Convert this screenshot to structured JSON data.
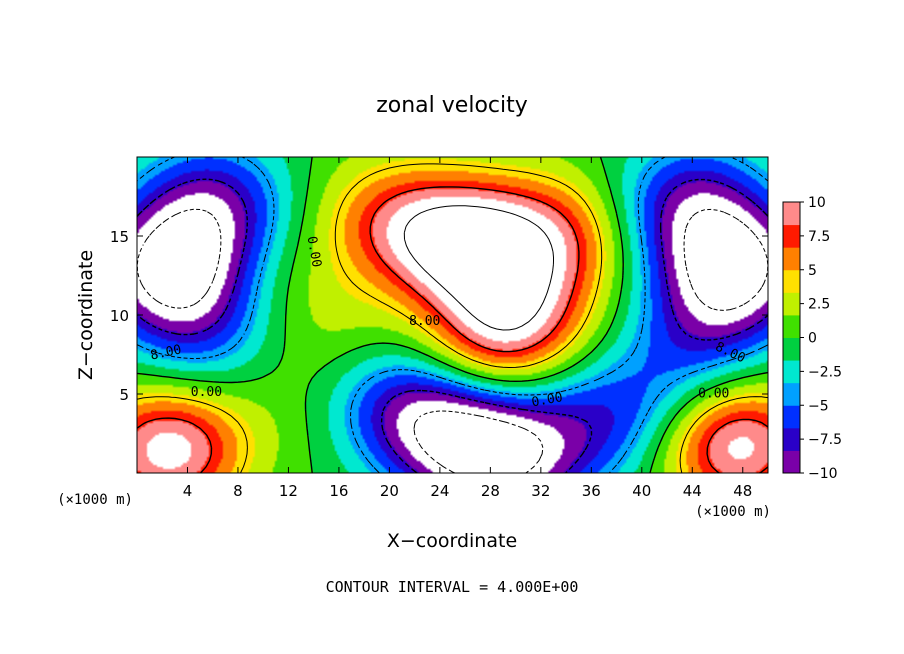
{
  "chart_data": {
    "type": "heatmap",
    "title": "zonal velocity",
    "xlabel": "X−coordinate",
    "ylabel": "Z−coordinate",
    "x_unit_left": "(×1000 m)",
    "x_unit_right": "(×1000 m)",
    "footer": "CONTOUR INTERVAL = 4.000E+00",
    "xlim": [
      0,
      50
    ],
    "ylim": [
      0,
      20
    ],
    "x_ticks": [
      "4",
      "8",
      "12",
      "16",
      "20",
      "24",
      "28",
      "32",
      "36",
      "40",
      "44",
      "48"
    ],
    "x_tick_values": [
      4,
      8,
      12,
      16,
      20,
      24,
      28,
      32,
      36,
      40,
      44,
      48
    ],
    "y_ticks": [
      "5",
      "10",
      "15"
    ],
    "y_tick_values": [
      5,
      10,
      15
    ],
    "colorbar": {
      "ticks": [
        "10",
        "7.5",
        "5",
        "2.5",
        "0",
        "−2.5",
        "−5",
        "−7.5",
        "−10"
      ],
      "tick_values": [
        10,
        7.5,
        5,
        2.5,
        0,
        -2.5,
        -5,
        -7.5,
        -10
      ],
      "range": [
        -10,
        10
      ]
    },
    "contour_interval": 4.0,
    "contour_labels": [
      {
        "text": "0.00",
        "x": 14.0,
        "y": 14.0,
        "angle": 80
      },
      {
        "text": "8.00",
        "x": 22.8,
        "y": 9.6,
        "angle": 0
      },
      {
        "text": "8.00",
        "x": 2.3,
        "y": 7.6,
        "angle": -12
      },
      {
        "text": "0.00",
        "x": 5.5,
        "y": 5.1,
        "angle": 0
      },
      {
        "text": "0.00",
        "x": 32.5,
        "y": 4.6,
        "angle": -10
      },
      {
        "text": "0.00",
        "x": 45.7,
        "y": 5.0,
        "angle": 0
      },
      {
        "text": "8.00",
        "x": 47.0,
        "y": 7.6,
        "angle": 25
      }
    ],
    "features": [
      {
        "type": "max",
        "x": 26.0,
        "y": 14.5,
        "value": 12
      },
      {
        "type": "min",
        "x": 2.5,
        "y": 13.0,
        "value": -12
      },
      {
        "type": "min",
        "x": 47.5,
        "y": 13.0,
        "value": -12
      },
      {
        "type": "max",
        "x": 2.5,
        "y": 1.5,
        "value": 11
      },
      {
        "type": "max",
        "x": 47.5,
        "y": 1.8,
        "value": 11
      },
      {
        "type": "min",
        "x": 29.0,
        "y": 1.0,
        "value": -11
      }
    ]
  },
  "colors": {
    "palette": [
      "#7a00a8",
      "#2a00c8",
      "#0030ff",
      "#00a0ff",
      "#00e8d0",
      "#00d040",
      "#40e000",
      "#c0f000",
      "#ffe000",
      "#ff8000",
      "#ff1a00",
      "#ff8a8a"
    ],
    "accent": "#000000"
  }
}
